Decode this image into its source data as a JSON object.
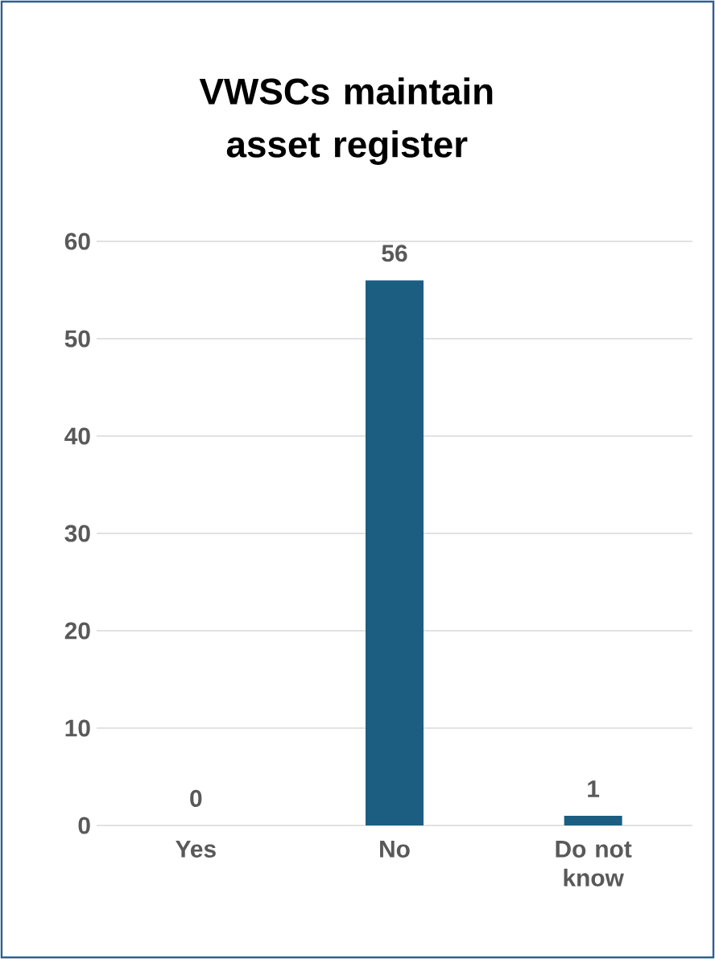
{
  "chart_data": {
    "type": "bar",
    "title": "VWSCs maintain asset register",
    "categories": [
      "Yes",
      "No",
      "Do not know"
    ],
    "values": [
      0,
      56,
      1
    ],
    "color": "#1b5e82",
    "ylim": [
      0,
      60
    ],
    "yticks": [
      0,
      10,
      20,
      30,
      40,
      50,
      60
    ],
    "grid": "y",
    "data_labels": true
  }
}
